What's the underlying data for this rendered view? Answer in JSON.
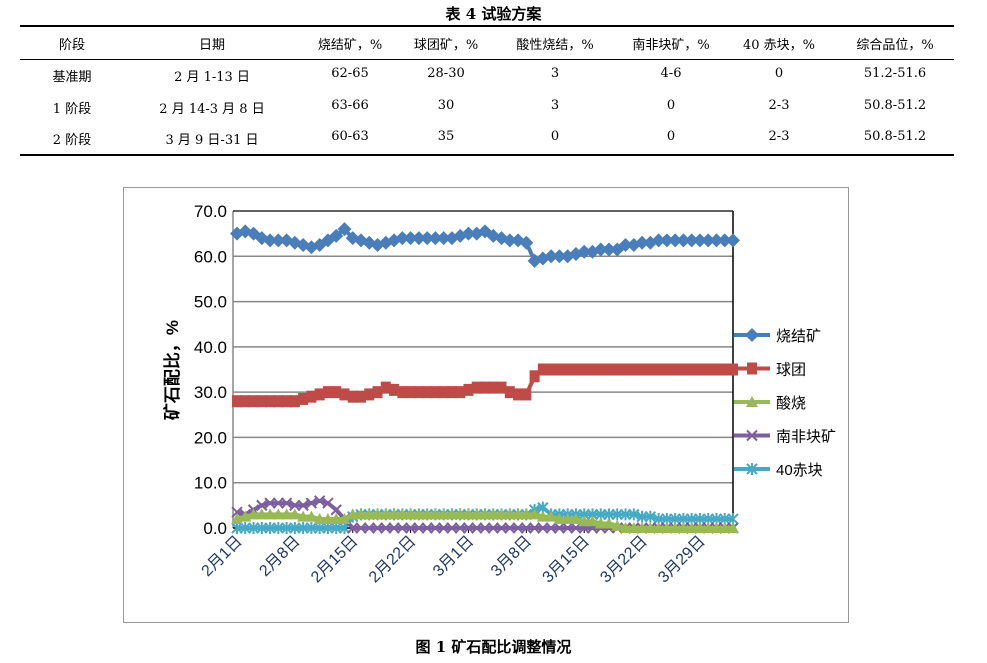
{
  "table": {
    "title": "表 4   试验方案",
    "headers": [
      "阶段",
      "日期",
      "烧结矿，%",
      "球团矿，%",
      "酸性烧结，%",
      "南非块矿，%",
      "40 赤块，%",
      "综合品位，%"
    ],
    "rows": [
      [
        "基准期",
        "2 月 1-13 日",
        "62-65",
        "28-30",
        "3",
        "4-6",
        "0",
        "51.2-51.6"
      ],
      [
        "1 阶段",
        "2 月 14-3 月 8 日",
        "63-66",
        "30",
        "3",
        "0",
        "2-3",
        "50.8-51.2"
      ],
      [
        "2 阶段",
        "3 月 9 日-31 日",
        "60-63",
        "35",
        "0",
        "0",
        "2-3",
        "50.8-51.2"
      ]
    ]
  },
  "figure_caption": "图 1    矿石配比调整情况",
  "chart_data": {
    "type": "line",
    "ylabel": "矿石配比，%",
    "ylim": [
      0,
      70
    ],
    "yticks": [
      "0.0",
      "10.0",
      "20.0",
      "30.0",
      "40.0",
      "50.0",
      "60.0",
      "70.0"
    ],
    "grid": true,
    "legend": "right",
    "xtick_labels": [
      "2月1日",
      "2月8日",
      "2月15日",
      "2月22日",
      "3月1日",
      "3月8日",
      "3月15日",
      "3月22日",
      "3月29日"
    ],
    "xtick_index": [
      0,
      7,
      14,
      21,
      28,
      35,
      42,
      49,
      56
    ],
    "series": [
      {
        "name": "烧结矿",
        "color": "#4a7ebb",
        "marker": "diamond",
        "values": [
          65,
          65.5,
          65,
          64,
          63.5,
          63.5,
          63.5,
          63,
          62.5,
          62,
          62.5,
          63.5,
          64.5,
          66,
          64,
          63.5,
          63,
          62.5,
          63,
          63.5,
          64,
          64,
          64,
          64,
          64,
          64,
          64,
          64.5,
          65,
          65,
          65.5,
          64.5,
          64,
          63.5,
          63.5,
          63,
          59,
          59.5,
          60,
          60,
          60,
          60.5,
          61,
          61,
          61.5,
          61.5,
          61.5,
          62.5,
          62.5,
          63,
          63,
          63.5,
          63.5,
          63.5,
          63.5,
          63.5,
          63.5,
          63.5,
          63.5,
          63.5,
          63.5
        ]
      },
      {
        "name": "球团",
        "color": "#be4b48",
        "marker": "square",
        "values": [
          28,
          28,
          28,
          28,
          28,
          28,
          28,
          28,
          28.5,
          29,
          29.5,
          30,
          30,
          29.5,
          29,
          29,
          29.5,
          30,
          31,
          30.5,
          30,
          30,
          30,
          30,
          30,
          30,
          30,
          30,
          30.5,
          31,
          31,
          31,
          31,
          30,
          29.5,
          29.5,
          33.5,
          35,
          35,
          35,
          35,
          35,
          35,
          35,
          35,
          35,
          35,
          35,
          35,
          35,
          35,
          35,
          35,
          35,
          35,
          35,
          35,
          35,
          35,
          35,
          35
        ]
      },
      {
        "name": "酸烧",
        "color": "#98b954",
        "marker": "triangle",
        "values": [
          2,
          2.5,
          3,
          3,
          3,
          3,
          3,
          3,
          2.5,
          2.5,
          2,
          2,
          2,
          2,
          3,
          3,
          3,
          3,
          3,
          3,
          3,
          3,
          3,
          3,
          3,
          3,
          3,
          3,
          3,
          3,
          3,
          3,
          3,
          3,
          3,
          3,
          3,
          2.5,
          2.5,
          2,
          2,
          2,
          1.5,
          1.5,
          1,
          1,
          0.5,
          0,
          0,
          0,
          0,
          0,
          0,
          0,
          0,
          0,
          0,
          0,
          0,
          0,
          0
        ]
      },
      {
        "name": "南非块矿",
        "color": "#7d5fa0",
        "marker": "x",
        "values": [
          3.5,
          3,
          4,
          5,
          5.5,
          5.5,
          5.5,
          5,
          5,
          5.5,
          6,
          5.5,
          4,
          2,
          0,
          0,
          0,
          0,
          0,
          0,
          0,
          0,
          0,
          0,
          0,
          0,
          0,
          0,
          0,
          0,
          0,
          0,
          0,
          0,
          0,
          0,
          0,
          0,
          0,
          0,
          0,
          0,
          0,
          0,
          0,
          0,
          0,
          0,
          0,
          0,
          0,
          0,
          0,
          0,
          0,
          0,
          0,
          0,
          0,
          0,
          0
        ]
      },
      {
        "name": "40赤块",
        "color": "#46aac5",
        "marker": "star",
        "values": [
          0,
          0,
          0,
          0,
          0,
          0,
          0,
          0,
          0,
          0,
          0,
          0,
          0,
          0,
          2.5,
          3,
          3,
          3,
          3,
          3,
          3,
          3,
          3,
          3,
          3,
          3,
          3,
          3,
          3,
          3,
          3,
          3,
          3,
          3,
          3,
          3,
          4,
          4.5,
          3,
          3,
          3,
          3,
          3,
          3,
          3,
          3,
          3,
          3,
          3,
          2.5,
          2.5,
          2,
          2,
          2,
          2,
          2,
          2,
          2,
          2,
          2,
          2
        ]
      }
    ]
  }
}
